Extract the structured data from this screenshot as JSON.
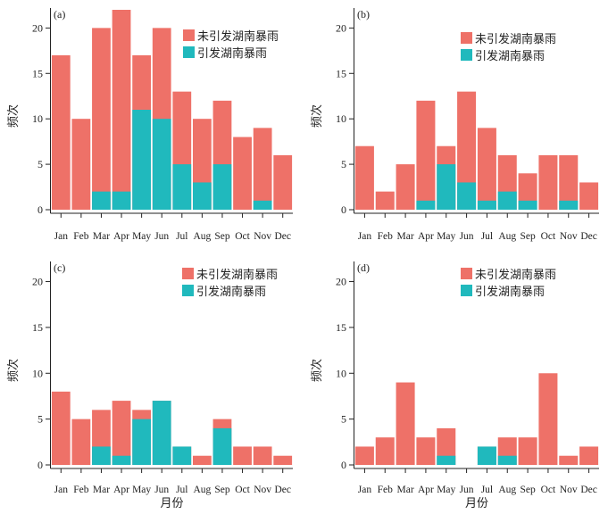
{
  "colors": {
    "not_caused": "#ee7168",
    "caused": "#20b9bd",
    "axis": "#222222"
  },
  "legend": {
    "not_caused": "未引发湖南暴雨",
    "caused": "引发湖南暴雨"
  },
  "chart_data": [
    {
      "type": "bar",
      "stacked": "overlay",
      "panel_label": "(a)",
      "ylabel": "频次",
      "xlabel": "",
      "ylim": [
        0,
        22
      ],
      "yticks": [
        0,
        5,
        10,
        15,
        20
      ],
      "categories": [
        "Jan",
        "Feb",
        "Mar",
        "Apr",
        "May",
        "Jun",
        "Jul",
        "Aug",
        "Sep",
        "Oct",
        "Nov",
        "Dec"
      ],
      "series": [
        {
          "name": "未引发湖南暴雨",
          "values": [
            17,
            10,
            20,
            22,
            17,
            20,
            13,
            10,
            12,
            8,
            9,
            6
          ]
        },
        {
          "name": "引发湖南暴雨",
          "values": [
            0,
            0,
            2,
            2,
            11,
            10,
            5,
            3,
            5,
            0,
            1,
            0
          ]
        }
      ]
    },
    {
      "type": "bar",
      "stacked": "overlay",
      "panel_label": "(b)",
      "ylabel": "频次",
      "xlabel": "",
      "ylim": [
        0,
        22
      ],
      "yticks": [
        0,
        5,
        10,
        15,
        20
      ],
      "categories": [
        "Jan",
        "Feb",
        "Mar",
        "Apr",
        "May",
        "Jun",
        "Jul",
        "Aug",
        "Sep",
        "Oct",
        "Nov",
        "Dec"
      ],
      "series": [
        {
          "name": "未引发湖南暴雨",
          "values": [
            7,
            2,
            5,
            12,
            7,
            13,
            9,
            6,
            4,
            6,
            6,
            3
          ]
        },
        {
          "name": "引发湖南暴雨",
          "values": [
            0,
            0,
            0,
            1,
            5,
            3,
            1,
            2,
            1,
            0,
            1,
            0
          ]
        }
      ]
    },
    {
      "type": "bar",
      "stacked": "overlay",
      "panel_label": "(c)",
      "ylabel": "频次",
      "xlabel": "月份",
      "ylim": [
        0,
        22
      ],
      "yticks": [
        0,
        5,
        10,
        15,
        20
      ],
      "categories": [
        "Jan",
        "Feb",
        "Mar",
        "Apr",
        "May",
        "Jun",
        "Jul",
        "Aug",
        "Sep",
        "Oct",
        "Nov",
        "Dec"
      ],
      "series": [
        {
          "name": "未引发湖南暴雨",
          "values": [
            8,
            5,
            6,
            7,
            6,
            7,
            2,
            1,
            5,
            2,
            2,
            1
          ]
        },
        {
          "name": "引发湖南暴雨",
          "values": [
            0,
            0,
            2,
            1,
            5,
            7,
            2,
            0,
            4,
            0,
            0,
            0
          ]
        }
      ]
    },
    {
      "type": "bar",
      "stacked": "overlay",
      "panel_label": "(d)",
      "ylabel": "频次",
      "xlabel": "月份",
      "ylim": [
        0,
        22
      ],
      "yticks": [
        0,
        5,
        10,
        15,
        20
      ],
      "categories": [
        "Jan",
        "Feb",
        "Mar",
        "Apr",
        "May",
        "Jun",
        "Jul",
        "Aug",
        "Sep",
        "Oct",
        "Nov",
        "Dec"
      ],
      "series": [
        {
          "name": "未引发湖南暴雨",
          "values": [
            2,
            3,
            9,
            3,
            4,
            0,
            2,
            3,
            3,
            10,
            1,
            2
          ]
        },
        {
          "name": "引发湖南暴雨",
          "values": [
            0,
            0,
            0,
            0,
            1,
            0,
            2,
            1,
            0,
            0,
            0,
            0
          ]
        }
      ]
    }
  ]
}
